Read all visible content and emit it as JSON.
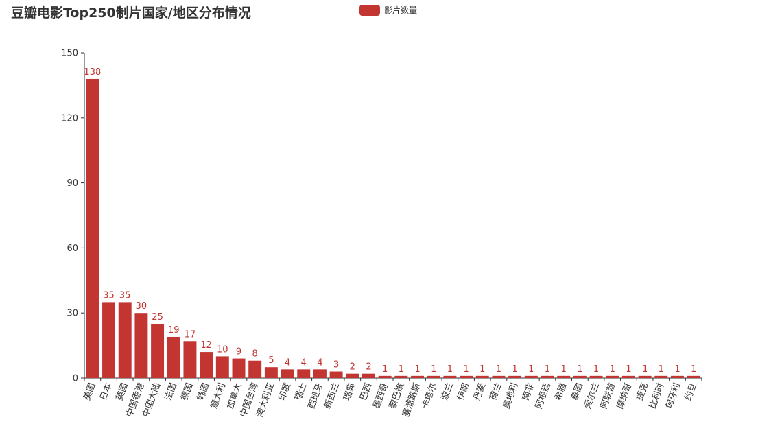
{
  "chart_data": {
    "type": "bar",
    "title": "豆瓣电影Top250制片国家/地区分布情况",
    "xlabel": "",
    "ylabel": "",
    "ylim": [
      0,
      150
    ],
    "yticks": [
      "0",
      "30",
      "60",
      "90",
      "120",
      "150"
    ],
    "legend_position": "top-center",
    "grid": false,
    "colors": {
      "bar": "#c23531",
      "axis": "#333333",
      "text": "#333333"
    },
    "categories": [
      "美国",
      "日本",
      "英国",
      "中国香港",
      "中国大陆",
      "法国",
      "德国",
      "韩国",
      "意大利",
      "加拿大",
      "中国台湾",
      "澳大利亚",
      "印度",
      "瑞士",
      "西班牙",
      "新西兰",
      "瑞典",
      "巴西",
      "墨西哥",
      "黎巴嫩",
      "塞浦路斯",
      "卡塔尔",
      "波兰",
      "伊朗",
      "丹麦",
      "荷兰",
      "奥地利",
      "南非",
      "阿根廷",
      "希腊",
      "泰国",
      "爱尔兰",
      "阿联酋",
      "摩纳哥",
      "捷克",
      "比利时",
      "匈牙利",
      "约旦"
    ],
    "series": [
      {
        "name": "影片数量",
        "values": [
          138,
          35,
          35,
          30,
          25,
          19,
          17,
          12,
          10,
          9,
          8,
          5,
          4,
          4,
          4,
          3,
          2,
          2,
          1,
          1,
          1,
          1,
          1,
          1,
          1,
          1,
          1,
          1,
          1,
          1,
          1,
          1,
          1,
          1,
          1,
          1,
          1,
          1
        ]
      }
    ]
  }
}
